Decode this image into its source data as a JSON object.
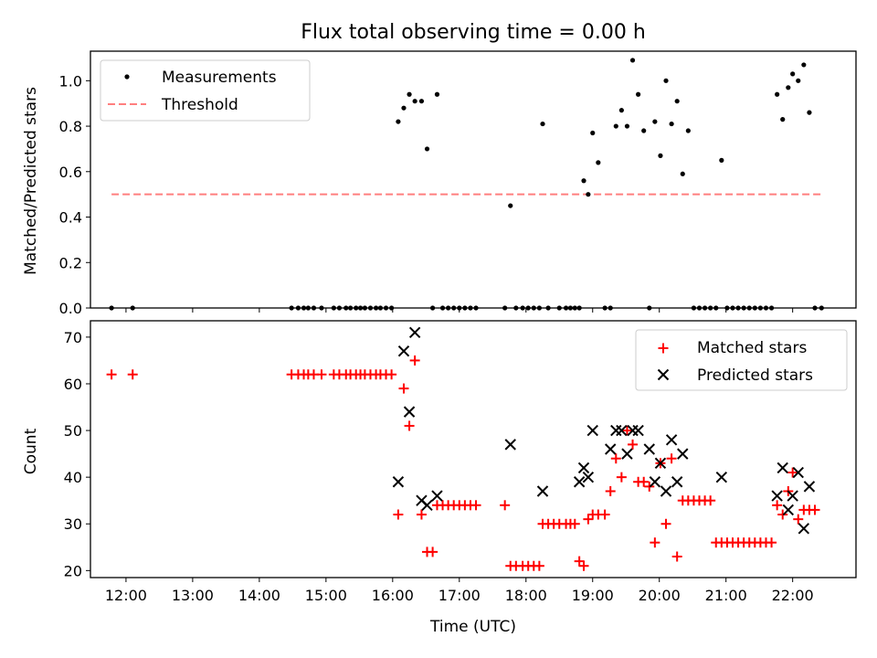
{
  "chart_data": [
    {
      "type": "scatter",
      "title": "Flux total observing time = 0.00 h",
      "xlabel": "",
      "ylabel": "Matched/Predicted stars",
      "ylim": [
        0,
        1.13
      ],
      "xlim": [
        "11:28",
        "22:57"
      ],
      "grid": false,
      "legend_position": "top-left",
      "series": [
        {
          "name": "Measurements",
          "color": "#000000",
          "marker": "dot",
          "points": [
            [
              "11:47",
              0
            ],
            [
              "12:06",
              0
            ],
            [
              "14:29",
              0
            ],
            [
              "14:35",
              0
            ],
            [
              "14:40",
              0
            ],
            [
              "14:44",
              0
            ],
            [
              "14:49",
              0
            ],
            [
              "14:56",
              0
            ],
            [
              "15:07",
              0
            ],
            [
              "15:12",
              0
            ],
            [
              "15:18",
              0
            ],
            [
              "15:22",
              0
            ],
            [
              "15:27",
              0
            ],
            [
              "15:31",
              0
            ],
            [
              "15:35",
              0
            ],
            [
              "15:40",
              0
            ],
            [
              "15:45",
              0
            ],
            [
              "15:49",
              0
            ],
            [
              "15:54",
              0
            ],
            [
              "15:59",
              0
            ],
            [
              "16:05",
              0.82
            ],
            [
              "16:10",
              0.88
            ],
            [
              "16:15",
              0.94
            ],
            [
              "16:20",
              0.91
            ],
            [
              "16:26",
              0.91
            ],
            [
              "16:31",
              0.7
            ],
            [
              "16:36",
              0
            ],
            [
              "16:40",
              0.94
            ],
            [
              "16:45",
              0
            ],
            [
              "16:50",
              0
            ],
            [
              "16:55",
              0
            ],
            [
              "17:00",
              0
            ],
            [
              "17:05",
              0
            ],
            [
              "17:10",
              0
            ],
            [
              "17:15",
              0
            ],
            [
              "17:41",
              0
            ],
            [
              "17:46",
              0.45
            ],
            [
              "17:51",
              0
            ],
            [
              "17:57",
              0
            ],
            [
              "18:02",
              0
            ],
            [
              "18:07",
              0
            ],
            [
              "18:12",
              0
            ],
            [
              "18:15",
              0.81
            ],
            [
              "18:20",
              0
            ],
            [
              "18:30",
              0
            ],
            [
              "18:36",
              0
            ],
            [
              "18:40",
              0
            ],
            [
              "18:44",
              0
            ],
            [
              "18:48",
              0
            ],
            [
              "18:52",
              0.56
            ],
            [
              "18:56",
              0.5
            ],
            [
              "19:00",
              0.77
            ],
            [
              "19:05",
              0.64
            ],
            [
              "19:11",
              0
            ],
            [
              "19:16",
              0
            ],
            [
              "19:21",
              0.8
            ],
            [
              "19:26",
              0.87
            ],
            [
              "19:31",
              0.8
            ],
            [
              "19:36",
              1.09
            ],
            [
              "19:41",
              0.94
            ],
            [
              "19:46",
              0.78
            ],
            [
              "19:51",
              0
            ],
            [
              "19:56",
              0.82
            ],
            [
              "20:01",
              0.67
            ],
            [
              "20:06",
              1.0
            ],
            [
              "20:11",
              0.81
            ],
            [
              "20:16",
              0.91
            ],
            [
              "20:21",
              0.59
            ],
            [
              "20:26",
              0.78
            ],
            [
              "20:31",
              0
            ],
            [
              "20:36",
              0
            ],
            [
              "20:41",
              0
            ],
            [
              "20:46",
              0
            ],
            [
              "20:51",
              0
            ],
            [
              "20:56",
              0.65
            ],
            [
              "21:01",
              0
            ],
            [
              "21:06",
              0
            ],
            [
              "21:11",
              0
            ],
            [
              "21:16",
              0
            ],
            [
              "21:21",
              0
            ],
            [
              "21:26",
              0
            ],
            [
              "21:31",
              0
            ],
            [
              "21:36",
              0
            ],
            [
              "21:41",
              0
            ],
            [
              "21:46",
              0.94
            ],
            [
              "21:51",
              0.83
            ],
            [
              "21:56",
              0.97
            ],
            [
              "22:00",
              1.03
            ],
            [
              "22:05",
              1.0
            ],
            [
              "22:10",
              1.07
            ],
            [
              "22:15",
              0.86
            ],
            [
              "22:20",
              0
            ],
            [
              "22:26",
              0
            ]
          ]
        },
        {
          "name": "Threshold",
          "color": "#ff7f7f",
          "style": "dashed",
          "points": [
            [
              "11:47",
              0.5
            ],
            [
              "22:26",
              0.5
            ]
          ]
        }
      ]
    },
    {
      "type": "scatter",
      "title": "",
      "xlabel": "Time (UTC)",
      "ylabel": "Count",
      "ylim": [
        18.5,
        73.5
      ],
      "xlim": [
        "11:28",
        "22:57"
      ],
      "grid": false,
      "legend_position": "top-right",
      "x_ticks": [
        "12:00",
        "13:00",
        "14:00",
        "15:00",
        "16:00",
        "17:00",
        "18:00",
        "19:00",
        "20:00",
        "21:00",
        "22:00"
      ],
      "y_ticks": [
        20,
        30,
        40,
        50,
        60,
        70
      ],
      "series": [
        {
          "name": "Matched stars",
          "color": "#ff0000",
          "marker": "plus",
          "points": [
            [
              "11:47",
              62
            ],
            [
              "12:06",
              62
            ],
            [
              "14:29",
              62
            ],
            [
              "14:35",
              62
            ],
            [
              "14:40",
              62
            ],
            [
              "14:44",
              62
            ],
            [
              "14:49",
              62
            ],
            [
              "14:56",
              62
            ],
            [
              "15:07",
              62
            ],
            [
              "15:12",
              62
            ],
            [
              "15:18",
              62
            ],
            [
              "15:22",
              62
            ],
            [
              "15:27",
              62
            ],
            [
              "15:31",
              62
            ],
            [
              "15:35",
              62
            ],
            [
              "15:40",
              62
            ],
            [
              "15:45",
              62
            ],
            [
              "15:49",
              62
            ],
            [
              "15:54",
              62
            ],
            [
              "15:59",
              62
            ],
            [
              "16:05",
              32
            ],
            [
              "16:10",
              59
            ],
            [
              "16:15",
              51
            ],
            [
              "16:20",
              65
            ],
            [
              "16:26",
              32
            ],
            [
              "16:31",
              24
            ],
            [
              "16:36",
              24
            ],
            [
              "16:40",
              34
            ],
            [
              "16:45",
              34
            ],
            [
              "16:50",
              34
            ],
            [
              "16:55",
              34
            ],
            [
              "17:00",
              34
            ],
            [
              "17:05",
              34
            ],
            [
              "17:10",
              34
            ],
            [
              "17:15",
              34
            ],
            [
              "17:41",
              34
            ],
            [
              "17:46",
              21
            ],
            [
              "17:51",
              21
            ],
            [
              "17:57",
              21
            ],
            [
              "18:02",
              21
            ],
            [
              "18:07",
              21
            ],
            [
              "18:12",
              21
            ],
            [
              "18:15",
              30
            ],
            [
              "18:20",
              30
            ],
            [
              "18:25",
              30
            ],
            [
              "18:30",
              30
            ],
            [
              "18:36",
              30
            ],
            [
              "18:40",
              30
            ],
            [
              "18:44",
              30
            ],
            [
              "18:48",
              22
            ],
            [
              "18:52",
              21
            ],
            [
              "18:56",
              31
            ],
            [
              "19:00",
              32
            ],
            [
              "19:05",
              32
            ],
            [
              "19:11",
              32
            ],
            [
              "19:16",
              37
            ],
            [
              "19:21",
              44
            ],
            [
              "19:26",
              40
            ],
            [
              "19:31",
              50
            ],
            [
              "19:36",
              47
            ],
            [
              "19:41",
              39
            ],
            [
              "19:46",
              39
            ],
            [
              "19:51",
              38
            ],
            [
              "19:56",
              26
            ],
            [
              "20:01",
              43
            ],
            [
              "20:06",
              30
            ],
            [
              "20:11",
              44
            ],
            [
              "20:16",
              23
            ],
            [
              "20:21",
              35
            ],
            [
              "20:26",
              35
            ],
            [
              "20:31",
              35
            ],
            [
              "20:36",
              35
            ],
            [
              "20:41",
              35
            ],
            [
              "20:46",
              35
            ],
            [
              "20:51",
              26
            ],
            [
              "20:56",
              26
            ],
            [
              "21:01",
              26
            ],
            [
              "21:06",
              26
            ],
            [
              "21:11",
              26
            ],
            [
              "21:16",
              26
            ],
            [
              "21:21",
              26
            ],
            [
              "21:26",
              26
            ],
            [
              "21:31",
              26
            ],
            [
              "21:36",
              26
            ],
            [
              "21:41",
              26
            ],
            [
              "21:46",
              34
            ],
            [
              "21:51",
              32
            ],
            [
              "21:56",
              37
            ],
            [
              "22:00",
              41
            ],
            [
              "22:05",
              31
            ],
            [
              "22:10",
              33
            ],
            [
              "22:15",
              33
            ],
            [
              "22:20",
              33
            ]
          ]
        },
        {
          "name": "Predicted stars",
          "color": "#000000",
          "marker": "x",
          "points": [
            [
              "16:05",
              39
            ],
            [
              "16:10",
              67
            ],
            [
              "16:15",
              54
            ],
            [
              "16:20",
              71
            ],
            [
              "16:26",
              35
            ],
            [
              "16:31",
              34
            ],
            [
              "16:40",
              36
            ],
            [
              "17:46",
              47
            ],
            [
              "18:15",
              37
            ],
            [
              "18:48",
              39
            ],
            [
              "18:52",
              42
            ],
            [
              "18:56",
              40
            ],
            [
              "19:00",
              50
            ],
            [
              "19:16",
              46
            ],
            [
              "19:21",
              50
            ],
            [
              "19:26",
              50
            ],
            [
              "19:31",
              45
            ],
            [
              "19:36",
              50
            ],
            [
              "19:41",
              50
            ],
            [
              "19:51",
              46
            ],
            [
              "19:56",
              39
            ],
            [
              "20:01",
              43
            ],
            [
              "20:06",
              37
            ],
            [
              "20:11",
              48
            ],
            [
              "20:16",
              39
            ],
            [
              "20:21",
              45
            ],
            [
              "20:56",
              40
            ],
            [
              "21:46",
              36
            ],
            [
              "21:51",
              42
            ],
            [
              "21:56",
              33
            ],
            [
              "22:00",
              36
            ],
            [
              "22:05",
              41
            ],
            [
              "22:10",
              29
            ],
            [
              "22:15",
              38
            ]
          ]
        }
      ]
    }
  ]
}
